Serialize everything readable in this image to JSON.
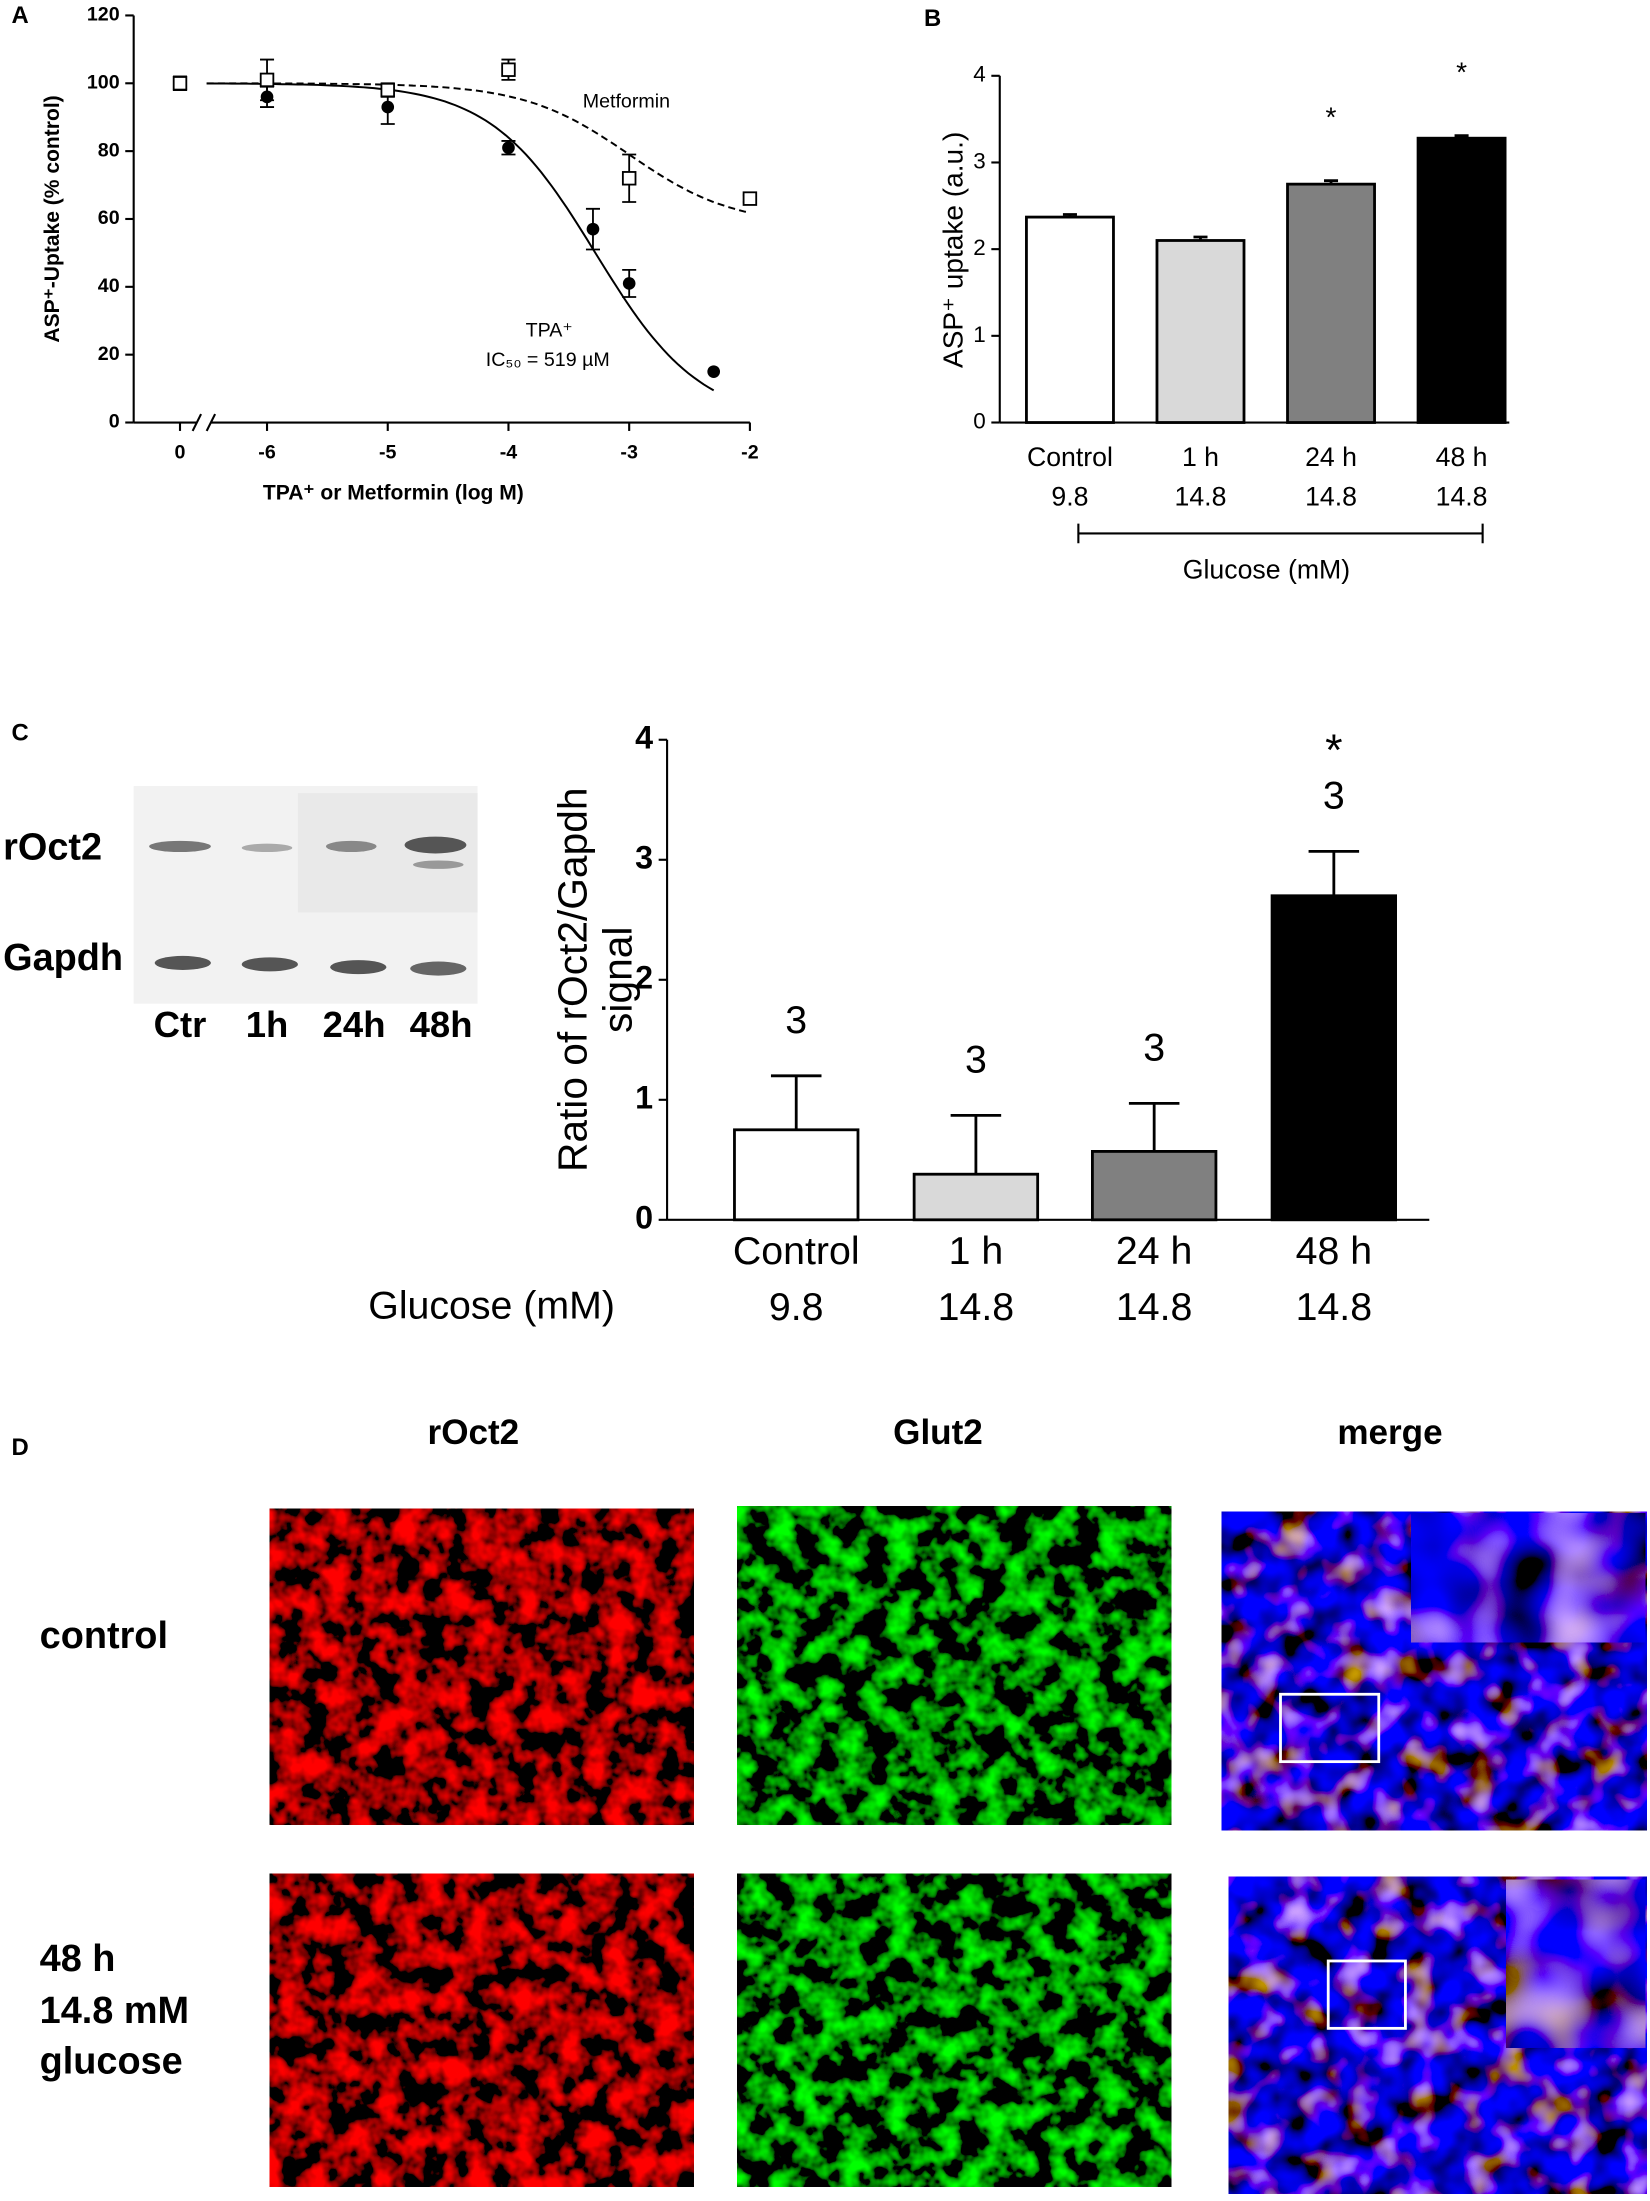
{
  "panels": [
    "A",
    "B",
    "C",
    "D"
  ],
  "chart_data": [
    {
      "type": "line",
      "ylabel": "ASP⁺-Uptake (% control)",
      "xlabel": "TPA⁺ or Metformin (log M)",
      "xlim": [
        -6.5,
        -2
      ],
      "axis_break": 0,
      "xticks": [
        0,
        -6,
        -5,
        -4,
        -3,
        -2
      ],
      "ylim": [
        0,
        120
      ],
      "yticks": [
        0,
        20,
        40,
        60,
        80,
        100,
        120
      ],
      "annotation": "IC₅₀ = 519 µM",
      "series": [
        {
          "name": "TPA⁺",
          "color": "#000000",
          "marker": "circle",
          "line_style": "solid",
          "x": [
            0,
            -6,
            -5,
            -4,
            -3.3,
            -3,
            -2.3
          ],
          "values": [
            100,
            96,
            93,
            81,
            57,
            41,
            15
          ],
          "errors": [
            2,
            3,
            5,
            2,
            6,
            4,
            0
          ],
          "fit": {
            "top": 100,
            "bottom": 0,
            "logIC50": -3.28,
            "hill": 1
          }
        },
        {
          "name": "Metformin",
          "color": "#000000",
          "marker": "square",
          "line_style": "dashed",
          "x": [
            0,
            -6,
            -5,
            -4,
            -3,
            -2
          ],
          "values": [
            100,
            101,
            98,
            104,
            72,
            66
          ],
          "errors": [
            2,
            6,
            2,
            3,
            7,
            1
          ],
          "fit": {
            "top": 100,
            "bottom": 58,
            "logIC50": -3.0,
            "hill": 1
          }
        }
      ]
    },
    {
      "type": "bar",
      "ylabel": "ASP⁺ uptake (a.u.)",
      "categories": [
        "Control",
        "1 h",
        "24 h",
        "48 h"
      ],
      "sublabels": [
        "9.8",
        "14.8",
        "14.8",
        "14.8"
      ],
      "group_label": "Glucose (mM)",
      "values": [
        2.37,
        2.1,
        2.75,
        3.28
      ],
      "errors": [
        0.03,
        0.04,
        0.04,
        0.03
      ],
      "colors": [
        "#ffffff",
        "#d9d9d9",
        "#808080",
        "#000000"
      ],
      "annotations": [
        null,
        null,
        "*",
        "*"
      ],
      "ylim": [
        0,
        4
      ],
      "yticks": [
        0,
        1,
        2,
        3,
        4
      ]
    },
    {
      "type": "bar",
      "ylabel_lines": [
        "Ratio of rOct2/Gapdh",
        "signal"
      ],
      "categories": [
        "Control",
        "1 h",
        "24 h",
        "48 h"
      ],
      "sublabels": [
        "9.8",
        "14.8",
        "14.8",
        "14.8"
      ],
      "group_label": "Glucose (mM)",
      "values": [
        0.75,
        0.38,
        0.57,
        2.7
      ],
      "errors": [
        0.45,
        0.49,
        0.4,
        0.37
      ],
      "n": [
        3,
        3,
        3,
        3
      ],
      "colors": [
        "#ffffff",
        "#d9d9d9",
        "#808080",
        "#000000"
      ],
      "annotations": [
        null,
        null,
        null,
        "*"
      ],
      "ylim": [
        0,
        4
      ],
      "yticks": [
        0,
        1,
        2,
        3,
        4
      ]
    }
  ],
  "blot": {
    "row_labels": [
      "rOct2",
      "Gapdh"
    ],
    "lanes": [
      "Ctr",
      "1h",
      "24h",
      "48h"
    ]
  },
  "microscopy": {
    "columns": [
      "rOct2",
      "Glut2",
      "merge"
    ],
    "rows": [
      [
        "control"
      ],
      [
        "48 h",
        "14.8 mM",
        "glucose"
      ]
    ]
  }
}
